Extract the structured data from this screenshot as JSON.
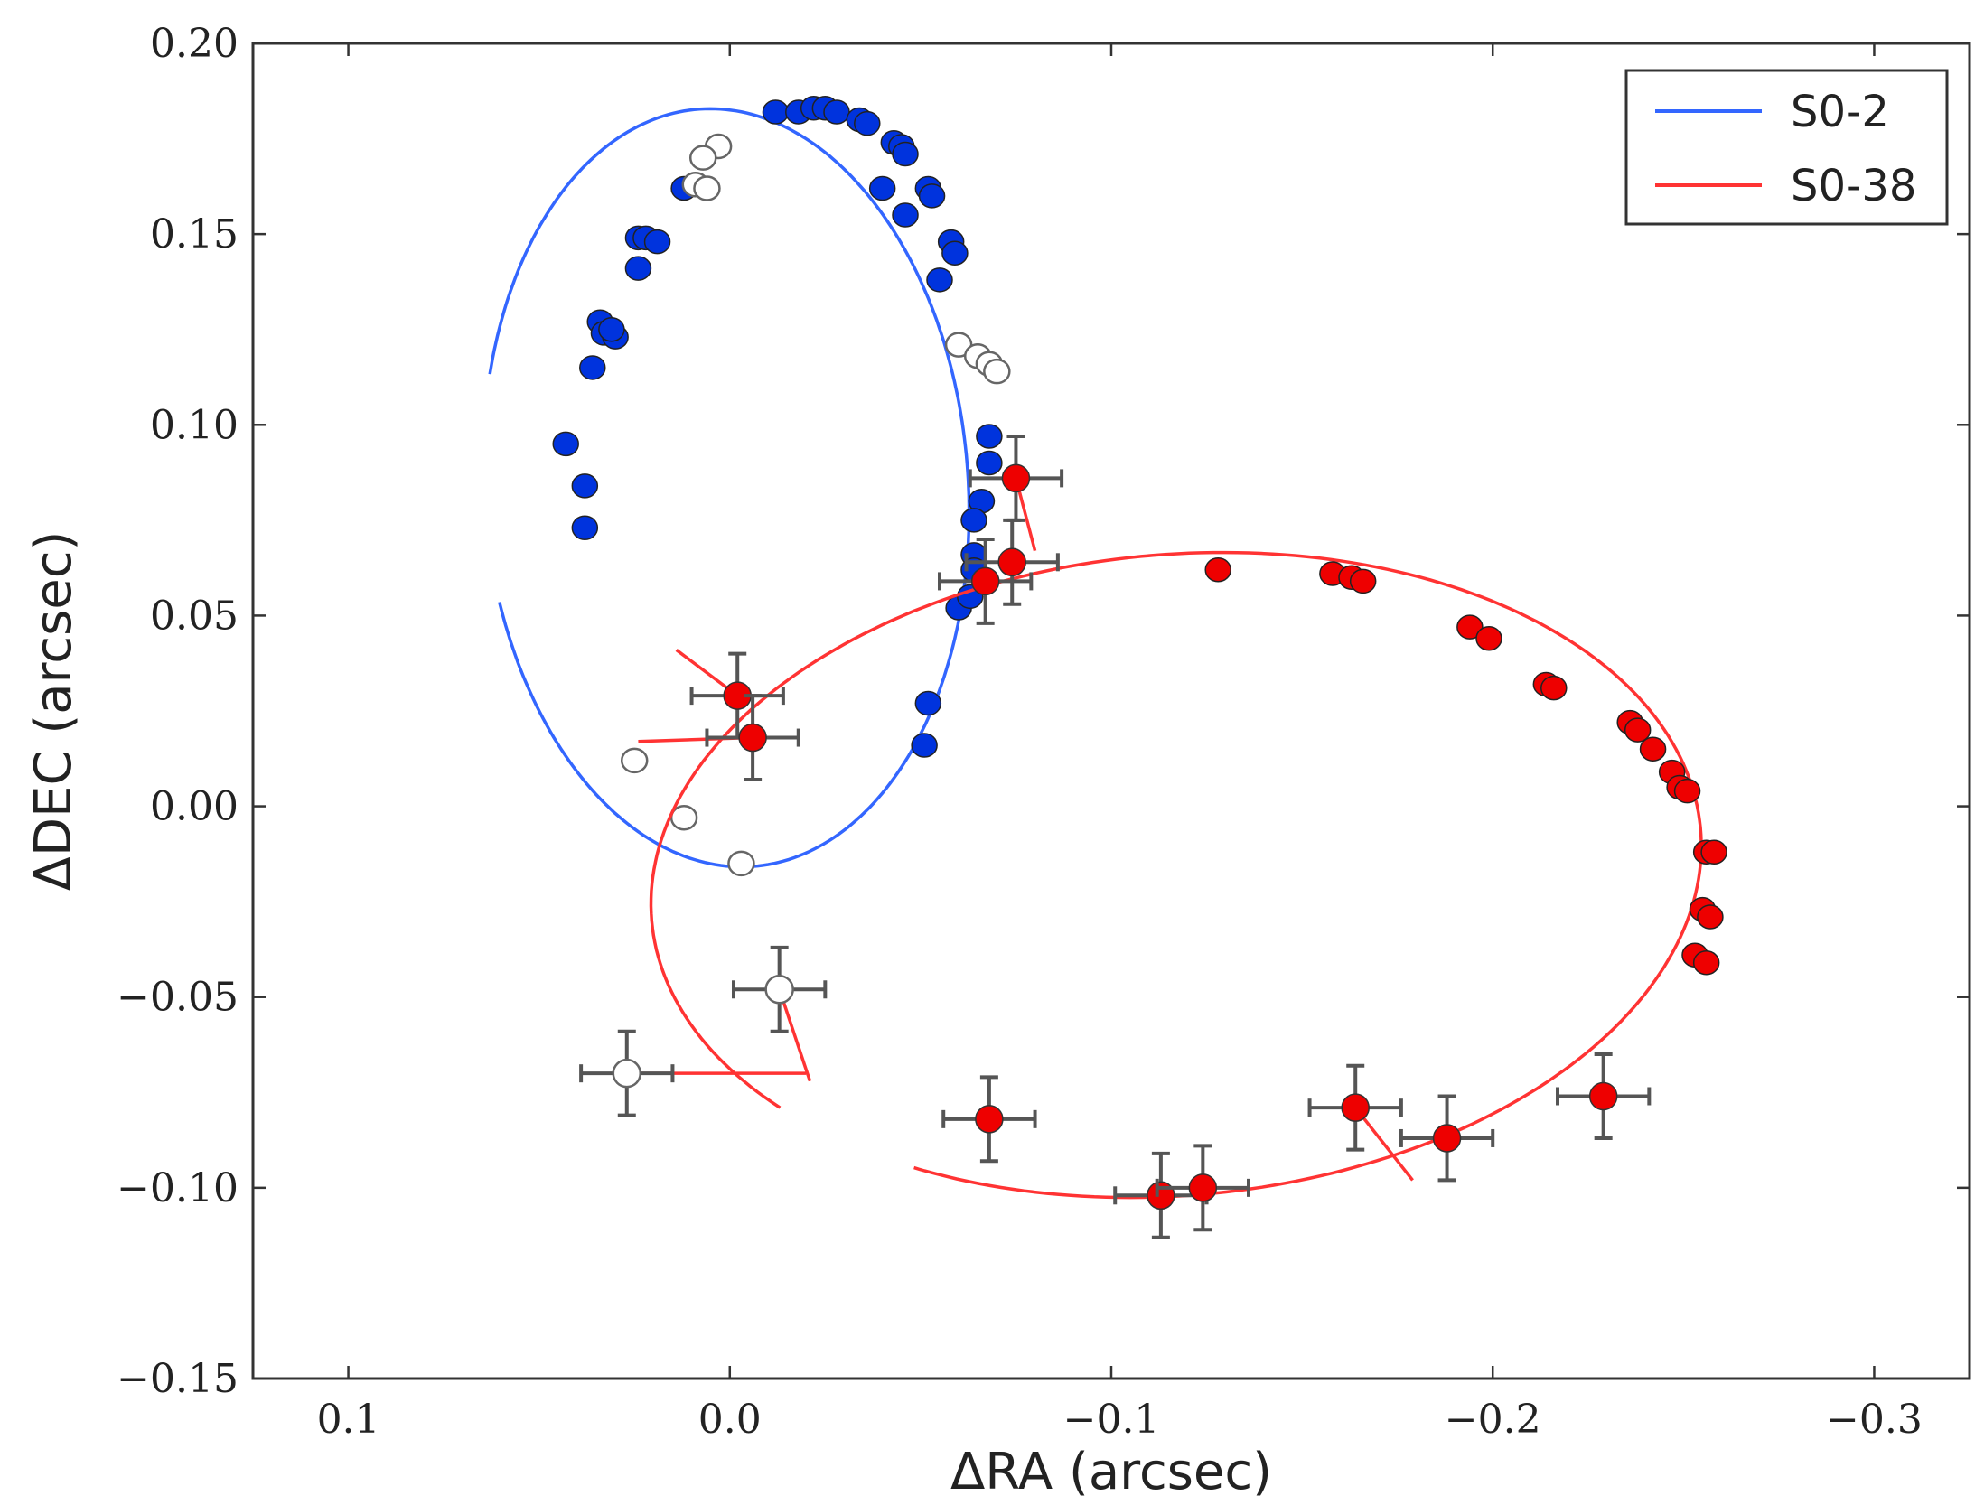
{
  "chart_data": {
    "type": "scatter",
    "title": "",
    "xlabel": "ΔRA (arcsec)",
    "ylabel": "ΔDEC (arcsec)",
    "xlim": [
      0.125,
      -0.325
    ],
    "ylim": [
      -0.15,
      0.2
    ],
    "x_inverted": true,
    "grid": false,
    "legend_position": "top-right",
    "xticks": [
      0.1,
      0.0,
      -0.1,
      -0.2,
      -0.3
    ],
    "xtick_labels": [
      "0.1",
      "0.0",
      "−0.1",
      "−0.2",
      "−0.3"
    ],
    "yticks": [
      0.2,
      0.15,
      0.1,
      0.05,
      0.0,
      -0.05,
      -0.1,
      -0.15
    ],
    "ytick_labels": [
      "0.20",
      "0.15",
      "0.10",
      "0.05",
      "0.00",
      "−0.05",
      "−0.10",
      "−0.15"
    ],
    "series": [
      {
        "name": "S0-2",
        "color": "#3366ff",
        "marker_color": "#0033dd",
        "orbit": {
          "center": [
            0.001,
            0.0835
          ],
          "a": 0.0635,
          "b": 0.0995,
          "rotation_deg": -4,
          "t_start_deg": 20,
          "t_end_deg": 345
        },
        "points": [
          [
            -0.012,
            0.182
          ],
          [
            -0.018,
            0.182
          ],
          [
            -0.022,
            0.183
          ],
          [
            -0.025,
            0.183
          ],
          [
            -0.028,
            0.182
          ],
          [
            -0.034,
            0.18
          ],
          [
            -0.036,
            0.179
          ],
          [
            -0.043,
            0.174
          ],
          [
            -0.045,
            0.173
          ],
          [
            -0.046,
            0.171
          ],
          [
            -0.04,
            0.162
          ],
          [
            -0.046,
            0.155
          ],
          [
            -0.052,
            0.162
          ],
          [
            -0.053,
            0.16
          ],
          [
            -0.058,
            0.148
          ],
          [
            -0.059,
            0.145
          ],
          [
            -0.055,
            0.138
          ],
          [
            0.012,
            0.162
          ],
          [
            0.024,
            0.149
          ],
          [
            0.022,
            0.149
          ],
          [
            0.019,
            0.148
          ],
          [
            0.024,
            0.141
          ],
          [
            0.034,
            0.127
          ],
          [
            0.033,
            0.124
          ],
          [
            0.03,
            0.123
          ],
          [
            0.031,
            0.125
          ],
          [
            0.036,
            0.115
          ],
          [
            0.043,
            0.095
          ],
          [
            0.038,
            0.084
          ],
          [
            0.038,
            0.073
          ],
          [
            -0.068,
            0.097
          ],
          [
            -0.068,
            0.09
          ],
          [
            -0.066,
            0.08
          ],
          [
            -0.064,
            0.075
          ],
          [
            -0.064,
            0.066
          ],
          [
            -0.064,
            0.062
          ],
          [
            -0.06,
            0.052
          ],
          [
            -0.063,
            0.055
          ],
          [
            -0.052,
            0.027
          ],
          [
            -0.051,
            0.016
          ]
        ],
        "open_points": [
          [
            0.003,
            0.173
          ],
          [
            0.007,
            0.17
          ],
          [
            0.009,
            0.163
          ],
          [
            0.006,
            0.162
          ],
          [
            -0.06,
            0.121
          ],
          [
            -0.065,
            0.118
          ],
          [
            -0.068,
            0.116
          ],
          [
            -0.07,
            0.114
          ],
          [
            0.025,
            0.012
          ],
          [
            0.012,
            -0.003
          ],
          [
            -0.003,
            -0.015
          ]
        ]
      },
      {
        "name": "S0-38",
        "color": "#ff3333",
        "marker_color": "#ee0000",
        "orbit": {
          "center": [
            -0.117,
            -0.018
          ],
          "a": 0.138,
          "b": 0.084,
          "rotation_deg": -5,
          "t_start_deg": -38,
          "t_end_deg": 303
        },
        "points": [
          [
            -0.128,
            0.062
          ],
          [
            -0.158,
            0.061
          ],
          [
            -0.163,
            0.06
          ],
          [
            -0.166,
            0.059
          ],
          [
            -0.194,
            0.047
          ],
          [
            -0.199,
            0.044
          ],
          [
            -0.214,
            0.032
          ],
          [
            -0.216,
            0.031
          ],
          [
            -0.236,
            0.022
          ],
          [
            -0.238,
            0.02
          ],
          [
            -0.242,
            0.015
          ],
          [
            -0.247,
            0.009
          ],
          [
            -0.249,
            0.005
          ],
          [
            -0.251,
            0.004
          ],
          [
            -0.256,
            -0.012
          ],
          [
            -0.258,
            -0.012
          ],
          [
            -0.255,
            -0.027
          ],
          [
            -0.257,
            -0.029
          ],
          [
            -0.253,
            -0.039
          ],
          [
            -0.256,
            -0.041
          ]
        ],
        "error_points": [
          {
            "x": -0.075,
            "y": 0.086,
            "xerr": 0.012,
            "yerr": 0.011
          },
          {
            "x": -0.074,
            "y": 0.064,
            "xerr": 0.012,
            "yerr": 0.011
          },
          {
            "x": -0.067,
            "y": 0.059,
            "xerr": 0.012,
            "yerr": 0.011
          },
          {
            "x": -0.002,
            "y": 0.029,
            "xerr": 0.012,
            "yerr": 0.011
          },
          {
            "x": -0.006,
            "y": 0.018,
            "xerr": 0.012,
            "yerr": 0.011
          },
          {
            "x": -0.068,
            "y": -0.082,
            "xerr": 0.012,
            "yerr": 0.011
          },
          {
            "x": -0.113,
            "y": -0.102,
            "xerr": 0.012,
            "yerr": 0.011
          },
          {
            "x": -0.124,
            "y": -0.1,
            "xerr": 0.012,
            "yerr": 0.011
          },
          {
            "x": -0.164,
            "y": -0.079,
            "xerr": 0.012,
            "yerr": 0.011
          },
          {
            "x": -0.188,
            "y": -0.087,
            "xerr": 0.012,
            "yerr": 0.011
          },
          {
            "x": -0.229,
            "y": -0.076,
            "xerr": 0.012,
            "yerr": 0.011
          }
        ],
        "open_error_points": [
          {
            "x": -0.013,
            "y": -0.048,
            "xerr": 0.012,
            "yerr": 0.011
          },
          {
            "x": 0.027,
            "y": -0.07,
            "xerr": 0.012,
            "yerr": 0.011
          }
        ],
        "residual_lines": [
          [
            [
              -0.075,
              0.086
            ],
            [
              -0.08,
              0.067
            ]
          ],
          [
            [
              -0.002,
              0.029
            ],
            [
              0.014,
              0.041
            ]
          ],
          [
            [
              -0.006,
              0.018
            ],
            [
              0.024,
              0.017
            ]
          ],
          [
            [
              0.027,
              -0.07
            ],
            [
              -0.02,
              -0.07
            ]
          ],
          [
            [
              -0.013,
              -0.048
            ],
            [
              -0.021,
              -0.072
            ]
          ],
          [
            [
              -0.164,
              -0.079
            ],
            [
              -0.179,
              -0.098
            ]
          ]
        ]
      }
    ]
  }
}
